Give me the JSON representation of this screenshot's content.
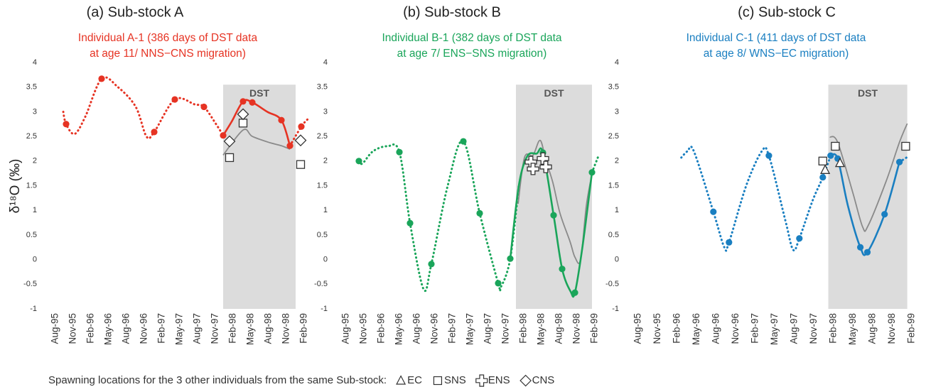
{
  "chart_data": [
    {
      "type": "line",
      "title": "(a) Sub-stock A",
      "subtitle": [
        "Individual A-1 (386 days of DST data",
        "at age 11/ NNS−CNS migration)"
      ],
      "subtitle_color": "#e63323",
      "ylabel": "δ¹⁸O (‰)",
      "xlim": [
        1995.5,
        1999.2
      ],
      "ylim": [
        -1,
        4
      ],
      "yticks": [
        -1,
        -0.5,
        0,
        0.5,
        1,
        1.5,
        2,
        2.5,
        3,
        3.5,
        4
      ],
      "xticks": [
        {
          "value": 1995.58,
          "label": "Aug-95"
        },
        {
          "value": 1995.83,
          "label": "Nov-95"
        },
        {
          "value": 1996.08,
          "label": "Feb-96"
        },
        {
          "value": 1996.33,
          "label": "May-96"
        },
        {
          "value": 1996.58,
          "label": "Aug-96"
        },
        {
          "value": 1996.83,
          "label": "Nov-96"
        },
        {
          "value": 1997.08,
          "label": "Feb-97"
        },
        {
          "value": 1997.33,
          "label": "May-97"
        },
        {
          "value": 1997.58,
          "label": "Aug-97"
        },
        {
          "value": 1997.83,
          "label": "Nov-97"
        },
        {
          "value": 1998.08,
          "label": "Feb-98"
        },
        {
          "value": 1998.33,
          "label": "May-98"
        },
        {
          "value": 1998.58,
          "label": "Aug-98"
        },
        {
          "value": 1998.83,
          "label": "Nov-98"
        },
        {
          "value": 1999.08,
          "label": "Feb-99"
        }
      ],
      "shade": {
        "label": "DST",
        "xlim": [
          1997.98,
          1999.0
        ],
        "ylim": [
          -1,
          3.55
        ],
        "color": "#dcdcdc"
      },
      "series": [
        {
          "style": "dotted",
          "color": "#e63323",
          "x": [
            1995.73,
            1995.77,
            1995.89,
            1996.04,
            1996.27,
            1996.5,
            1996.75,
            1996.9,
            1997.01,
            1997.3,
            1997.58,
            1997.71,
            1997.88,
            1997.98
          ],
          "values": [
            3.0,
            2.75,
            2.55,
            2.9,
            3.67,
            3.5,
            3.1,
            2.5,
            2.59,
            3.25,
            3.15,
            3.1,
            2.75,
            2.52
          ]
        },
        {
          "style": "dotted",
          "color": "#e63323",
          "x": [
            1998.92,
            1999.08,
            1999.17
          ],
          "values": [
            2.31,
            2.7,
            2.85
          ]
        },
        {
          "style": "gray",
          "color": "#8a8a8a",
          "x": [
            1997.98,
            1998.26,
            1998.39,
            1998.62,
            1998.8,
            1998.92
          ],
          "values": [
            2.12,
            2.63,
            2.5,
            2.38,
            2.31,
            2.24
          ]
        },
        {
          "style": "solid",
          "color": "#e63323",
          "x": [
            1997.98,
            1998.1,
            1998.26,
            1998.39,
            1998.6,
            1998.8,
            1998.92
          ],
          "values": [
            2.52,
            2.8,
            3.21,
            3.19,
            3.0,
            2.83,
            2.31
          ]
        },
        {
          "style": "points",
          "color": "#e63323",
          "x": [
            1995.77,
            1996.27,
            1997.01,
            1997.3,
            1997.71,
            1997.98,
            1998.26,
            1998.39,
            1998.8,
            1998.92,
            1999.08
          ],
          "values": [
            2.75,
            3.67,
            2.59,
            3.25,
            3.1,
            2.52,
            3.21,
            3.19,
            2.83,
            2.31,
            2.7
          ]
        },
        {
          "style": "markers",
          "marker": "square",
          "color": "#333333",
          "x": [
            1998.07,
            1998.26,
            1999.07
          ],
          "values": [
            2.07,
            2.77,
            1.93
          ]
        },
        {
          "style": "markers",
          "marker": "diamond",
          "color": "#333333",
          "x": [
            1998.07,
            1998.26,
            1999.07
          ],
          "values": [
            2.4,
            2.95,
            2.42
          ]
        }
      ]
    },
    {
      "type": "line",
      "title": "(b) Sub-stock B",
      "subtitle": [
        "Individual B-1 (382 days of DST data",
        "at age 7/ ENS−SNS migration)"
      ],
      "subtitle_color": "#1aa55a",
      "xlim": [
        1995.5,
        1999.2
      ],
      "ylim": [
        -1,
        4
      ],
      "yticks": [
        -1,
        -0.5,
        0,
        0.5,
        1,
        1.5,
        2,
        2.5,
        3,
        3.5,
        4
      ],
      "xticks": [
        {
          "value": 1995.58,
          "label": "Aug-95"
        },
        {
          "value": 1995.83,
          "label": "Nov-95"
        },
        {
          "value": 1996.08,
          "label": "Feb-96"
        },
        {
          "value": 1996.33,
          "label": "May-96"
        },
        {
          "value": 1996.58,
          "label": "Aug-96"
        },
        {
          "value": 1996.83,
          "label": "Nov-96"
        },
        {
          "value": 1997.08,
          "label": "Feb-97"
        },
        {
          "value": 1997.33,
          "label": "May-97"
        },
        {
          "value": 1997.58,
          "label": "Aug-97"
        },
        {
          "value": 1997.83,
          "label": "Nov-97"
        },
        {
          "value": 1998.08,
          "label": "Feb-98"
        },
        {
          "value": 1998.33,
          "label": "May-98"
        },
        {
          "value": 1998.58,
          "label": "Aug-98"
        },
        {
          "value": 1998.83,
          "label": "Nov-98"
        },
        {
          "value": 1999.08,
          "label": "Feb-99"
        }
      ],
      "shade": {
        "label": "DST",
        "xlim": [
          1998.01,
          1999.08
        ],
        "ylim": [
          -1,
          3.55
        ],
        "color": "#dcdcdc"
      },
      "series": [
        {
          "style": "dotted",
          "color": "#1aa55a",
          "x": [
            1995.8,
            1995.85,
            1996.0,
            1996.2,
            1996.37,
            1996.52,
            1996.71,
            1996.82,
            1997.05,
            1997.27,
            1997.5,
            1997.76,
            1997.8,
            1997.93,
            1998.05
          ],
          "values": [
            2.0,
            1.95,
            2.2,
            2.3,
            2.18,
            0.74,
            -0.6,
            -0.09,
            1.5,
            2.4,
            0.94,
            -0.48,
            -0.55,
            0.02,
            1.5
          ]
        },
        {
          "style": "dotted",
          "color": "#1aa55a",
          "x": [
            1999.08,
            1999.17
          ],
          "values": [
            1.77,
            2.1
          ]
        },
        {
          "style": "gray",
          "color": "#8a8a8a",
          "x": [
            1998.04,
            1998.13,
            1998.25,
            1998.35,
            1998.43,
            1998.53,
            1998.63,
            1998.77,
            1998.84,
            1998.92,
            1999.0,
            1999.08
          ],
          "values": [
            1.13,
            2.07,
            2.12,
            2.42,
            2.02,
            1.56,
            0.94,
            0.37,
            0.05,
            0.0,
            1.09,
            1.74
          ]
        },
        {
          "style": "solid",
          "color": "#1aa55a",
          "x": [
            1997.93,
            1998.05,
            1998.17,
            1998.3,
            1998.39,
            1998.54,
            1998.66,
            1998.78,
            1998.84,
            1998.95,
            1999.08
          ],
          "values": [
            0.02,
            1.5,
            2.1,
            2.15,
            2.17,
            0.9,
            -0.19,
            -0.65,
            -0.67,
            0.3,
            1.77
          ]
        },
        {
          "style": "points",
          "color": "#1aa55a",
          "x": [
            1995.8,
            1996.37,
            1996.52,
            1996.82,
            1997.27,
            1997.5,
            1997.76,
            1997.93,
            1998.39,
            1998.54,
            1998.66,
            1998.84,
            1999.08
          ],
          "values": [
            2.0,
            2.18,
            0.74,
            -0.09,
            2.4,
            0.94,
            -0.48,
            0.02,
            2.17,
            0.9,
            -0.19,
            -0.67,
            1.77
          ]
        },
        {
          "style": "markers",
          "marker": "cross",
          "color": "#333333",
          "x": [
            1998.22,
            1998.25,
            1998.39,
            1998.43
          ],
          "values": [
            1.98,
            1.84,
            2.05,
            1.88
          ]
        }
      ]
    },
    {
      "type": "line",
      "title": "(c) Sub-stock C",
      "subtitle": [
        "Individual C-1 (411 days of DST data",
        "at age 8/ WNS−EC migration)"
      ],
      "subtitle_color": "#1a7fc1",
      "xlim": [
        1995.5,
        1999.2
      ],
      "ylim": [
        -1,
        4
      ],
      "yticks": [
        -1,
        -0.5,
        0,
        0.5,
        1,
        1.5,
        2,
        2.5,
        3,
        3.5,
        4
      ],
      "xticks": [
        {
          "value": 1995.58,
          "label": "Aug-95"
        },
        {
          "value": 1995.83,
          "label": "Nov-95"
        },
        {
          "value": 1996.08,
          "label": "Feb-96"
        },
        {
          "value": 1996.33,
          "label": "May-96"
        },
        {
          "value": 1996.58,
          "label": "Aug-96"
        },
        {
          "value": 1996.83,
          "label": "Nov-96"
        },
        {
          "value": 1997.08,
          "label": "Feb-97"
        },
        {
          "value": 1997.33,
          "label": "May-97"
        },
        {
          "value": 1997.58,
          "label": "Aug-97"
        },
        {
          "value": 1997.83,
          "label": "Nov-97"
        },
        {
          "value": 1998.08,
          "label": "Feb-98"
        },
        {
          "value": 1998.33,
          "label": "May-98"
        },
        {
          "value": 1998.58,
          "label": "Aug-98"
        },
        {
          "value": 1998.83,
          "label": "Nov-98"
        },
        {
          "value": 1999.08,
          "label": "Feb-99"
        }
      ],
      "shade": {
        "label": "DST",
        "xlim": [
          1998.05,
          1999.06
        ],
        "ylim": [
          -1,
          3.55
        ],
        "color": "#dcdcdc"
      },
      "series": [
        {
          "style": "dotted",
          "color": "#1a7fc1",
          "x": [
            1996.17,
            1996.25,
            1996.33,
            1996.58,
            1996.72,
            1996.78,
            1997.0,
            1997.2,
            1997.29,
            1997.5,
            1997.6,
            1997.68,
            1997.85,
            1997.98,
            1998.08
          ],
          "values": [
            2.07,
            2.2,
            2.2,
            0.97,
            0.25,
            0.35,
            1.5,
            2.2,
            2.11,
            0.8,
            0.2,
            0.43,
            1.2,
            1.67,
            2.11
          ]
        },
        {
          "style": "dotted",
          "color": "#1a7fc1",
          "x": [
            1998.96,
            1999.08
          ],
          "values": [
            1.98,
            2.1
          ]
        },
        {
          "style": "gray",
          "color": "#8a8a8a",
          "x": [
            1998.07,
            1998.17,
            1998.36,
            1998.49,
            1998.56,
            1998.79,
            1998.96,
            1999.06
          ],
          "values": [
            2.49,
            2.38,
            1.38,
            0.66,
            0.69,
            1.59,
            2.38,
            2.76
          ]
        },
        {
          "style": "solid",
          "color": "#1a7fc1",
          "x": [
            1998.08,
            1998.17,
            1998.3,
            1998.46,
            1998.55,
            1998.77,
            1998.96
          ],
          "values": [
            2.11,
            2.05,
            1.1,
            0.25,
            0.15,
            0.92,
            1.98
          ]
        },
        {
          "style": "points",
          "color": "#1a7fc1",
          "x": [
            1996.58,
            1996.78,
            1997.29,
            1997.68,
            1997.98,
            1998.08,
            1998.17,
            1998.46,
            1998.55,
            1998.77,
            1998.96
          ],
          "values": [
            0.97,
            0.35,
            2.11,
            0.43,
            1.67,
            2.11,
            2.05,
            0.25,
            0.15,
            0.92,
            1.98
          ]
        },
        {
          "style": "markers",
          "marker": "square",
          "color": "#333333",
          "x": [
            1997.98,
            1998.14,
            1999.04
          ],
          "values": [
            2.0,
            2.3,
            2.3
          ]
        },
        {
          "style": "markers",
          "marker": "triangle",
          "color": "#333333",
          "x": [
            1998.01,
            1998.2
          ],
          "values": [
            1.82,
            1.96
          ]
        }
      ]
    }
  ],
  "footer": {
    "text": "Spawning locations for the 3 other individuals from the same Sub-stock:",
    "items": [
      {
        "marker": "triangle",
        "label": "EC"
      },
      {
        "marker": "square",
        "label": "SNS"
      },
      {
        "marker": "cross",
        "label": "ENS"
      },
      {
        "marker": "diamond",
        "label": "CNS"
      }
    ]
  }
}
